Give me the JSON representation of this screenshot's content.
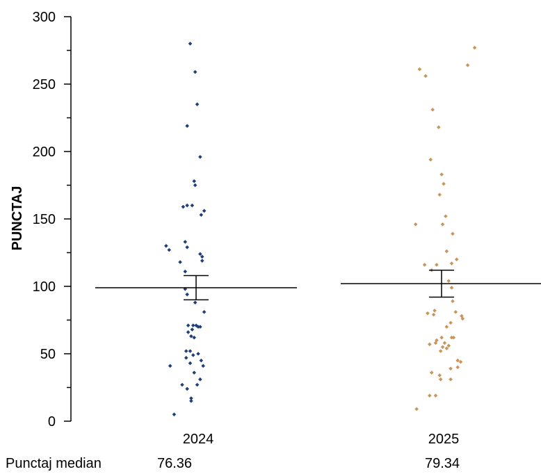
{
  "chart_data": {
    "type": "scatter",
    "title": "",
    "xlabel": "",
    "ylabel": "PUNCTAJ",
    "ylim": [
      0,
      300
    ],
    "yticks": [
      0,
      50,
      100,
      150,
      200,
      250,
      300
    ],
    "categories": [
      "2024",
      "2025"
    ],
    "grid": false,
    "legend": "none",
    "series": [
      {
        "category": "2024",
        "color": "#1f3f7a",
        "mean": 99,
        "error_low": 90,
        "error_high": 108,
        "points": [
          [
            -0.08,
            280
          ],
          [
            -0.03,
            259
          ],
          [
            -0.01,
            235
          ],
          [
            -0.11,
            219
          ],
          [
            0.02,
            196
          ],
          [
            -0.04,
            178
          ],
          [
            -0.03,
            175
          ],
          [
            -0.15,
            159
          ],
          [
            -0.11,
            160
          ],
          [
            -0.06,
            160
          ],
          [
            0.06,
            156
          ],
          [
            0.03,
            153
          ],
          [
            -0.32,
            130
          ],
          [
            -0.13,
            133
          ],
          [
            -0.29,
            127
          ],
          [
            -0.11,
            129
          ],
          [
            0.04,
            122
          ],
          [
            -0.18,
            118
          ],
          [
            0.04,
            119
          ],
          [
            0.02,
            124
          ],
          [
            -0.13,
            111
          ],
          [
            -0.13,
            98
          ],
          [
            -0.11,
            94
          ],
          [
            -0.03,
            88
          ],
          [
            0.06,
            81
          ],
          [
            -0.1,
            71
          ],
          [
            -0.05,
            71
          ],
          [
            -0.02,
            71
          ],
          [
            0.0,
            70
          ],
          [
            0.02,
            70
          ],
          [
            -0.06,
            68
          ],
          [
            -0.1,
            66
          ],
          [
            -0.07,
            63
          ],
          [
            -0.04,
            62
          ],
          [
            -0.12,
            52
          ],
          [
            -0.08,
            52
          ],
          [
            -0.05,
            49
          ],
          [
            0.0,
            50
          ],
          [
            -0.12,
            47
          ],
          [
            0.03,
            45
          ],
          [
            -0.08,
            43
          ],
          [
            0.05,
            41
          ],
          [
            -0.28,
            41
          ],
          [
            -0.04,
            36
          ],
          [
            -0.01,
            27
          ],
          [
            0.02,
            31
          ],
          [
            -0.16,
            27
          ],
          [
            -0.11,
            24
          ],
          [
            -0.07,
            17
          ],
          [
            -0.07,
            15
          ],
          [
            -0.24,
            5
          ]
        ]
      },
      {
        "category": "2025",
        "color": "#c8965a",
        "mean": 102,
        "error_low": 92,
        "error_high": 112,
        "points": [
          [
            0.31,
            277
          ],
          [
            0.24,
            264
          ],
          [
            -0.24,
            261
          ],
          [
            -0.18,
            256
          ],
          [
            -0.11,
            231
          ],
          [
            -0.05,
            218
          ],
          [
            -0.13,
            194
          ],
          [
            -0.02,
            183
          ],
          [
            -0.0,
            176
          ],
          [
            -0.04,
            168
          ],
          [
            0.02,
            152
          ],
          [
            -0.28,
            146
          ],
          [
            -0.01,
            146
          ],
          [
            0.09,
            139
          ],
          [
            0.03,
            126
          ],
          [
            0.13,
            120
          ],
          [
            -0.19,
            116
          ],
          [
            -0.07,
            116
          ],
          [
            -0.12,
            112
          ],
          [
            0.08,
            117
          ],
          [
            0.05,
            104
          ],
          [
            0.08,
            99
          ],
          [
            0.09,
            89
          ],
          [
            0.12,
            81
          ],
          [
            -0.16,
            80
          ],
          [
            -0.09,
            82
          ],
          [
            -0.1,
            79
          ],
          [
            0.18,
            78
          ],
          [
            0.19,
            76
          ],
          [
            0.07,
            73
          ],
          [
            0.03,
            70
          ],
          [
            0.1,
            62
          ],
          [
            0.08,
            62
          ],
          [
            -0.02,
            62
          ],
          [
            -0.07,
            60
          ],
          [
            -0.08,
            58
          ],
          [
            0.01,
            58
          ],
          [
            0.05,
            56
          ],
          [
            -0.14,
            57
          ],
          [
            -0.01,
            55
          ],
          [
            0.03,
            54
          ],
          [
            -0.03,
            52
          ],
          [
            0.14,
            45
          ],
          [
            0.17,
            44
          ],
          [
            0.14,
            40
          ],
          [
            0.07,
            39
          ],
          [
            -0.12,
            36
          ],
          [
            -0.04,
            34
          ],
          [
            -0.03,
            31
          ],
          [
            0.07,
            31
          ],
          [
            -0.14,
            19
          ],
          [
            -0.08,
            19
          ],
          [
            -0.27,
            9
          ]
        ]
      }
    ],
    "footer": {
      "label": "Punctaj median",
      "values": [
        "76.36",
        "79.34"
      ]
    }
  }
}
